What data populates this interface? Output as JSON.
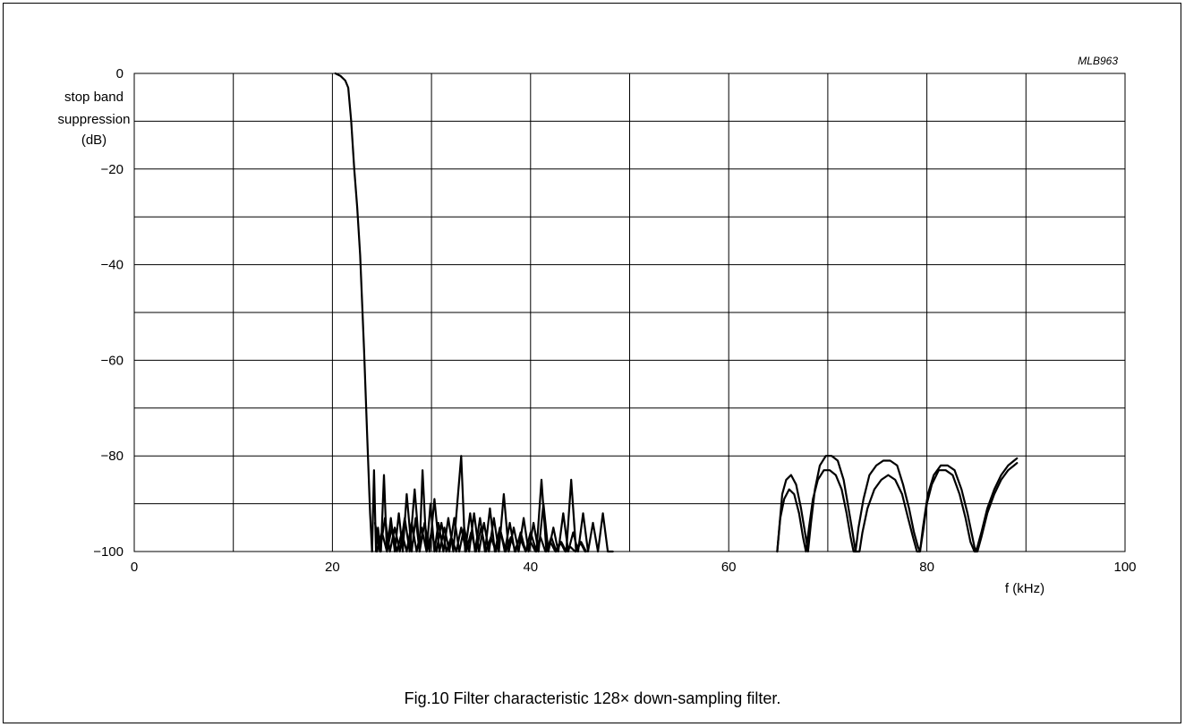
{
  "figure": {
    "ref_code": "MLB963",
    "caption": "Fig.10  Filter characteristic 128× down-sampling filter."
  },
  "chart_data": {
    "type": "line",
    "title": "",
    "xlabel": "f  (kHz)",
    "ylabel": [
      "stop band",
      "suppression",
      "(dB)"
    ],
    "xlim": [
      0,
      100
    ],
    "ylim": [
      -100,
      0
    ],
    "x_ticks": [
      0,
      20,
      40,
      60,
      80,
      100
    ],
    "y_ticks": [
      0,
      -20,
      -40,
      -60,
      -80,
      -100
    ],
    "x_tick_labels": [
      "0",
      "20",
      "40",
      "60",
      "80",
      "100"
    ],
    "y_tick_labels": [
      "0",
      "−20",
      "−40",
      "−60",
      "−80",
      "−100"
    ],
    "grid": {
      "x_step": 10,
      "y_step": 10
    },
    "series": [
      {
        "x": [
          20.3,
          20.8,
          21.3,
          21.6,
          21.9,
          22.2,
          22.5,
          22.8,
          23.2,
          23.5,
          23.8,
          24.0
        ],
        "y": [
          0,
          -0.5,
          -1.5,
          -3,
          -10,
          -20,
          -28,
          -38,
          -58,
          -75,
          -92,
          -100
        ]
      },
      {
        "x": [
          24.0,
          24.2,
          24.4,
          24.6,
          24.9,
          25.2,
          25.5,
          25.9,
          26.3,
          26.7,
          27.1,
          27.5,
          28.0,
          28.4,
          28.8,
          29.1,
          29.5,
          29.9,
          30.3,
          30.7,
          31.2,
          31.7,
          32.2,
          32.6,
          33.0,
          33.4,
          33.9,
          34.4,
          34.9,
          35.4,
          35.9,
          36.4,
          36.9,
          37.4,
          37.9,
          38.4,
          38.9,
          39.5,
          40.0,
          40.6,
          41.1,
          41.6,
          42.1,
          42.6,
          43.1,
          43.6,
          44.1,
          44.6,
          45.1,
          45.6
        ],
        "y": [
          -100,
          -83,
          -100,
          -95,
          -100,
          -84,
          -100,
          -93,
          -100,
          -92,
          -100,
          -88,
          -100,
          -93,
          -100,
          -83,
          -100,
          -90,
          -100,
          -94,
          -100,
          -93,
          -100,
          -90,
          -80,
          -100,
          -92,
          -100,
          -93,
          -100,
          -91,
          -100,
          -95,
          -100,
          -94,
          -100,
          -97,
          -100,
          -96,
          -100,
          -85,
          -100,
          -97,
          -100,
          -98,
          -100,
          -85,
          -100,
          -98,
          -100
        ]
      },
      {
        "x": [
          24.3,
          24.8,
          25.3,
          25.8,
          26.3,
          26.8,
          27.3,
          27.8,
          28.3,
          28.8,
          29.3,
          29.8,
          30.3,
          30.8,
          31.3,
          31.8,
          32.3,
          32.8,
          33.3,
          33.8,
          34.3,
          34.8,
          35.3,
          35.8,
          36.3,
          36.8,
          37.3,
          37.8,
          38.3,
          38.8,
          39.3,
          39.8,
          40.3,
          40.8,
          41.3,
          41.8,
          42.3,
          42.8,
          43.3,
          43.8,
          44.3,
          44.8,
          45.3,
          45.8,
          46.3,
          46.8,
          47.3,
          47.8,
          48.3
        ],
        "y": [
          -94,
          -100,
          -93,
          -100,
          -95,
          -100,
          -93,
          -100,
          -87,
          -100,
          -94,
          -100,
          -89,
          -100,
          -95,
          -100,
          -93,
          -100,
          -95,
          -100,
          -92,
          -100,
          -94,
          -100,
          -93,
          -100,
          -88,
          -100,
          -95,
          -100,
          -93,
          -100,
          -94,
          -100,
          -90,
          -100,
          -95,
          -100,
          -92,
          -100,
          -96,
          -100,
          -92,
          -100,
          -94,
          -100,
          -92,
          -100,
          -100
        ]
      },
      {
        "x": [
          24.5,
          25.0,
          25.5,
          26.0,
          26.5,
          27.0,
          27.5,
          28.0,
          28.5,
          29.0,
          29.5,
          30.0,
          30.5,
          31.0,
          31.5,
          32.0,
          32.5,
          33.0,
          33.5,
          34.0,
          34.5,
          35.0,
          35.5,
          36.0,
          36.5,
          37.0,
          37.5,
          38.0,
          38.5,
          39.0,
          39.5,
          40.0,
          40.5,
          41.0,
          41.5,
          42.0,
          42.5,
          43.0,
          43.5,
          44.0,
          44.5,
          45.0,
          45.5
        ],
        "y": [
          -100,
          -96,
          -100,
          -95,
          -100,
          -96,
          -100,
          -94,
          -100,
          -95,
          -100,
          -96,
          -100,
          -94,
          -100,
          -97,
          -100,
          -95,
          -100,
          -96,
          -100,
          -95,
          -100,
          -97,
          -100,
          -96,
          -100,
          -97,
          -100,
          -96,
          -100,
          -98,
          -100,
          -97,
          -100,
          -98,
          -100,
          -98,
          -100,
          -99,
          -100,
          -98,
          -100
        ]
      },
      {
        "x": [
          64.9,
          65.1,
          65.4,
          65.8,
          66.3,
          66.8,
          67.3,
          67.7,
          68.0,
          68.3,
          68.7,
          69.2,
          69.8,
          70.4,
          71.0,
          71.6,
          72.1,
          72.5,
          72.8,
          73.1,
          73.6,
          74.2,
          74.9,
          75.6,
          76.3,
          77.0,
          77.6,
          78.2,
          78.7,
          79.1,
          79.3,
          79.6,
          80.1,
          80.7,
          81.4,
          82.1,
          82.8,
          83.5,
          84.1,
          84.6,
          84.9,
          85.1,
          85.5,
          86.1,
          86.8,
          87.5,
          88.2,
          88.8,
          89.1
        ],
        "y": [
          -100,
          -95,
          -88,
          -85,
          -84,
          -86,
          -91,
          -96,
          -100,
          -94,
          -87,
          -82,
          -80,
          -80,
          -81,
          -85,
          -91,
          -96,
          -100,
          -95,
          -89,
          -84,
          -82,
          -81,
          -81,
          -82,
          -86,
          -91,
          -96,
          -99,
          -100,
          -95,
          -88,
          -84,
          -82,
          -82,
          -83,
          -87,
          -92,
          -97,
          -100,
          -99,
          -96,
          -91,
          -87,
          -84,
          -82,
          -81,
          -80.5
        ]
      },
      {
        "x": [
          64.9,
          65.2,
          65.6,
          66.1,
          66.6,
          67.1,
          67.5,
          67.8,
          68.1,
          68.5,
          69.0,
          69.6,
          70.2,
          70.8,
          71.4,
          71.9,
          72.3,
          72.6,
          72.9,
          73.2,
          73.5,
          74.0,
          74.7,
          75.4,
          76.1,
          76.8,
          77.5,
          78.1,
          78.6,
          79.0,
          79.3,
          79.6,
          80.0,
          80.5,
          81.2,
          81.9,
          82.6,
          83.3,
          83.9,
          84.4,
          84.8,
          85.1,
          85.5,
          86.1,
          86.8,
          87.5,
          88.2,
          88.8,
          89.1
        ],
        "y": [
          -100,
          -93,
          -89,
          -87,
          -88,
          -92,
          -97,
          -100,
          -95,
          -89,
          -85,
          -83,
          -83,
          -84,
          -87,
          -92,
          -97,
          -100,
          -100,
          -100,
          -96,
          -91,
          -87,
          -85,
          -84,
          -85,
          -88,
          -93,
          -97,
          -100,
          -100,
          -96,
          -90,
          -86,
          -83,
          -83,
          -84,
          -88,
          -93,
          -98,
          -100,
          -100,
          -97,
          -92,
          -88,
          -85,
          -83,
          -82,
          -81.5
        ]
      }
    ]
  }
}
